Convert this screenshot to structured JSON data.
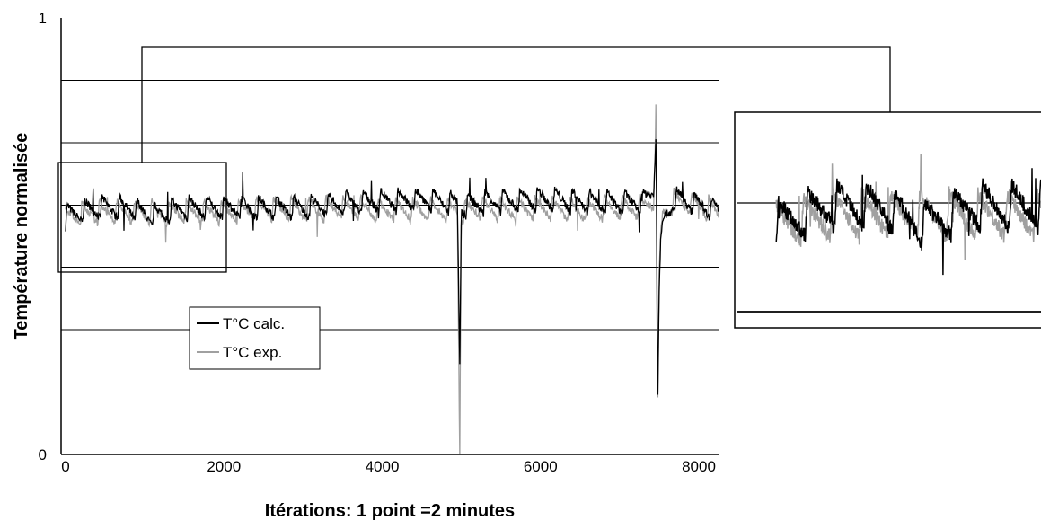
{
  "chart_data": {
    "type": "line",
    "xlabel": "Itérations: 1 point =2 minutes",
    "ylabel": "Température normalisée",
    "xlim": [
      0,
      8300
    ],
    "ylim": [
      0,
      1
    ],
    "x_ticks": [
      "0",
      "2000",
      "4000",
      "6000",
      "8000"
    ],
    "x_tick_values": [
      0,
      2000,
      4000,
      6000,
      8000
    ],
    "y_ticks": [
      "0",
      "1"
    ],
    "y_tick_values": [
      0,
      1
    ],
    "gridlines_y": [
      0.143,
      0.286,
      0.429,
      0.571,
      0.714,
      0.857
    ],
    "grid": "horizontal",
    "legend_position": "lower-left",
    "series": [
      {
        "name": "T°C calc.",
        "color": "#000000",
        "x": [
          0,
          400,
          800,
          1100,
          1500,
          2000,
          2500,
          3000,
          3500,
          4000,
          4500,
          4950,
          4980,
          5000,
          5200,
          5500,
          6000,
          6500,
          7000,
          7300,
          7430,
          7460,
          7480,
          7500,
          7520,
          7550,
          7700,
          8000,
          8300
        ],
        "values": [
          0.54,
          0.56,
          0.56,
          0.54,
          0.56,
          0.56,
          0.56,
          0.56,
          0.57,
          0.575,
          0.58,
          0.57,
          0.2,
          0.56,
          0.57,
          0.575,
          0.58,
          0.575,
          0.57,
          0.575,
          0.6,
          0.75,
          0.13,
          0.35,
          0.48,
          0.53,
          0.58,
          0.57,
          0.55
        ]
      },
      {
        "name": "T°C exp.",
        "color": "#a0a0a0",
        "x": [
          0,
          400,
          800,
          1100,
          1500,
          2000,
          2500,
          3000,
          3500,
          4000,
          4500,
          4950,
          4980,
          5000,
          5200,
          5500,
          6000,
          6500,
          7000,
          7300,
          7430,
          7460,
          7480,
          7500,
          7520,
          7550,
          7700,
          8000,
          8300
        ],
        "values": [
          0.54,
          0.55,
          0.55,
          0.55,
          0.55,
          0.55,
          0.56,
          0.555,
          0.56,
          0.555,
          0.555,
          0.555,
          0.0,
          0.55,
          0.56,
          0.555,
          0.56,
          0.555,
          0.56,
          0.56,
          0.58,
          0.8,
          0.08,
          0.4,
          0.5,
          0.55,
          0.575,
          0.565,
          0.55
        ]
      }
    ],
    "zoom_box_range": {
      "x": [
        -300,
        2000
      ],
      "y": [
        0.43,
        0.67
      ]
    }
  }
}
